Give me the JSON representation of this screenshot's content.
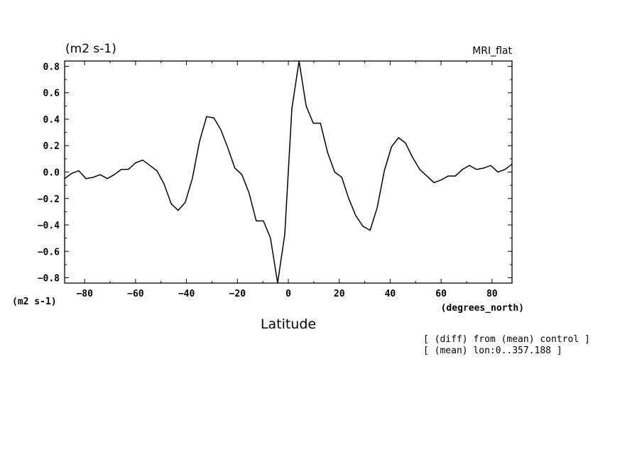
{
  "chart_data": {
    "type": "line",
    "title_left": "(m2 s-1)",
    "title_right": "MRI_flat",
    "y_unit_label": "(m2 s-1)",
    "x_unit_label": "(degrees_north)",
    "xlabel": "Latitude",
    "notes": [
      "[ (diff) from (mean) control ]",
      "[ (mean) lon:0..357.188 ]"
    ],
    "xlim": [
      -87.86,
      87.86
    ],
    "ylim": [
      -0.84,
      0.84
    ],
    "x_ticks": [
      -80,
      -60,
      -40,
      -20,
      0,
      20,
      40,
      60,
      80
    ],
    "y_ticks": [
      0.8,
      0.6,
      0.4,
      0.2,
      0.0,
      -0.2,
      -0.4,
      -0.6,
      -0.8
    ],
    "y_tick_labels": [
      "0.8",
      "0.6",
      "0.4",
      "0.2",
      "0.0",
      "−0.2",
      "−0.4",
      "−0.6",
      "−0.8"
    ],
    "x_tick_labels": [
      "−80",
      "−60",
      "−40",
      "−20",
      "0",
      "20",
      "40",
      "60",
      "80"
    ],
    "grid": false,
    "series": [
      {
        "color": "#000000",
        "x": [
          -87.86,
          -85.1,
          -82.3,
          -79.5,
          -76.7,
          -73.9,
          -71.1,
          -68.4,
          -65.6,
          -62.8,
          -60.0,
          -57.2,
          -54.4,
          -51.6,
          -48.8,
          -46.0,
          -43.3,
          -40.5,
          -37.7,
          -34.9,
          -32.1,
          -29.3,
          -26.5,
          -23.7,
          -21.0,
          -18.2,
          -15.4,
          -12.6,
          -9.8,
          -7.0,
          -4.2,
          -1.4,
          1.4,
          4.2,
          7.0,
          9.8,
          12.6,
          15.4,
          18.2,
          21.0,
          23.7,
          26.5,
          29.3,
          32.1,
          34.9,
          37.7,
          40.5,
          43.3,
          46.0,
          48.8,
          51.6,
          54.4,
          57.2,
          60.0,
          62.8,
          65.6,
          68.4,
          71.1,
          73.9,
          76.7,
          79.5,
          82.3,
          85.1,
          87.86
        ],
        "y": [
          -0.05,
          -0.01,
          0.01,
          -0.05,
          -0.04,
          -0.02,
          -0.05,
          -0.02,
          0.02,
          0.02,
          0.07,
          0.09,
          0.05,
          0.01,
          -0.09,
          -0.24,
          -0.29,
          -0.23,
          -0.05,
          0.23,
          0.42,
          0.41,
          0.32,
          0.18,
          0.03,
          -0.02,
          -0.16,
          -0.37,
          -0.37,
          -0.5,
          -0.84,
          -0.47,
          0.48,
          0.84,
          0.5,
          0.37,
          0.37,
          0.15,
          0.0,
          -0.04,
          -0.2,
          -0.33,
          -0.41,
          -0.44,
          -0.27,
          0.01,
          0.19,
          0.26,
          0.22,
          0.11,
          0.02,
          -0.03,
          -0.08,
          -0.06,
          -0.03,
          -0.03,
          0.02,
          0.05,
          0.02,
          0.03,
          0.05,
          0.0,
          0.02,
          0.06
        ]
      }
    ]
  }
}
